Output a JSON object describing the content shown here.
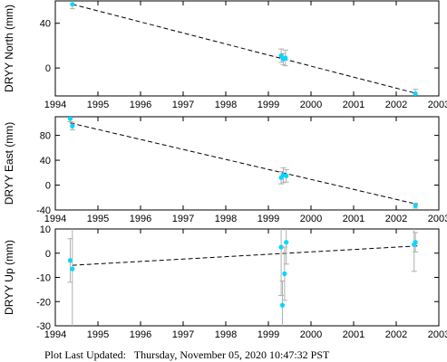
{
  "footer": {
    "label": "Plot Last Updated:",
    "timestamp": "Thursday, November 05, 2020 10:47:32 PST"
  },
  "colors": {
    "point": "#00d8ff",
    "errorbar": "#b0b0b0",
    "trend": "#000000",
    "axis": "#000000"
  },
  "chart_data": [
    {
      "type": "scatter",
      "ylabel": "DRYY North (mm)",
      "xlim": [
        1994,
        2003
      ],
      "ylim": [
        -25,
        60
      ],
      "xticks": [
        1994,
        1995,
        1996,
        1997,
        1998,
        1999,
        2000,
        2001,
        2002,
        2003
      ],
      "yticks": [
        0,
        40
      ],
      "grid": false,
      "trend": [
        [
          1994.4,
          57
        ],
        [
          2002.5,
          -23
        ]
      ],
      "points": [
        {
          "x": 1994.4,
          "y": 57,
          "err": 4
        },
        {
          "x": 1999.3,
          "y": 11,
          "err": 6
        },
        {
          "x": 1999.35,
          "y": 8,
          "err": 5
        },
        {
          "x": 1999.4,
          "y": 9,
          "err": 7
        },
        {
          "x": 2002.45,
          "y": -23,
          "err": 4
        }
      ]
    },
    {
      "type": "scatter",
      "ylabel": "DRYY East (mm)",
      "xlim": [
        1994,
        2003
      ],
      "ylim": [
        -40,
        110
      ],
      "xticks": [
        1994,
        1995,
        1996,
        1997,
        1998,
        1999,
        2000,
        2001,
        2002,
        2003
      ],
      "yticks": [
        -40,
        0,
        40,
        80
      ],
      "grid": false,
      "trend": [
        [
          1994.35,
          100
        ],
        [
          2002.5,
          -31
        ]
      ],
      "points": [
        {
          "x": 1994.35,
          "y": 107,
          "err": 5
        },
        {
          "x": 1994.4,
          "y": 95,
          "err": 6
        },
        {
          "x": 1999.3,
          "y": 12,
          "err": 10
        },
        {
          "x": 1999.35,
          "y": 16,
          "err": 12
        },
        {
          "x": 1999.42,
          "y": 15,
          "err": 10
        },
        {
          "x": 2002.45,
          "y": -33,
          "err": 4
        }
      ]
    },
    {
      "type": "scatter",
      "ylabel": "DRYY Up (mm)",
      "xlim": [
        1994,
        2003
      ],
      "ylim": [
        -30,
        10
      ],
      "xticks": [
        1994,
        1995,
        1996,
        1997,
        1998,
        1999,
        2000,
        2001,
        2002,
        2003
      ],
      "yticks": [
        -30,
        -20,
        -10,
        0,
        10
      ],
      "grid": false,
      "trend": [
        [
          1994.4,
          -5
        ],
        [
          2002.5,
          3
        ]
      ],
      "points": [
        {
          "x": 1994.35,
          "y": -3,
          "err": 9
        },
        {
          "x": 1994.4,
          "y": -6.5,
          "err": 24
        },
        {
          "x": 1999.3,
          "y": 2.5,
          "err": 20
        },
        {
          "x": 1999.33,
          "y": -21.5,
          "err": 10
        },
        {
          "x": 1999.38,
          "y": -8.5,
          "err": 11
        },
        {
          "x": 1999.42,
          "y": 4.5,
          "err": 9
        },
        {
          "x": 2002.42,
          "y": 3.5,
          "err": 11
        },
        {
          "x": 2002.45,
          "y": 4.5,
          "err": 4
        }
      ]
    }
  ]
}
